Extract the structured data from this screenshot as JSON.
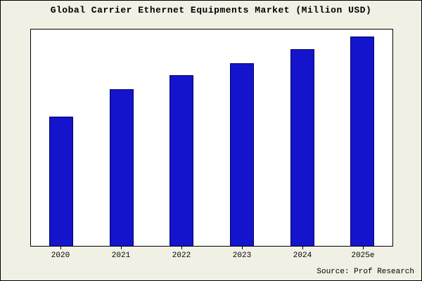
{
  "title": "Global Carrier Ethernet Equipments Market (Million USD)",
  "source": "Source: Prof Research",
  "colors": {
    "background": "#f1f0e5",
    "plot_background": "#ffffff",
    "bar_fill": "#1414cc",
    "bar_edge": "#000066",
    "border": "#000000"
  },
  "chart_data": {
    "type": "bar",
    "title": "Global Carrier Ethernet Equipments Market (Million USD)",
    "categories": [
      "2020",
      "2021",
      "2022",
      "2023",
      "2024",
      "2025e"
    ],
    "values": [
      620,
      750,
      815,
      875,
      940,
      1000
    ],
    "xlabel": "",
    "ylabel": "",
    "ylim": [
      0,
      1035
    ],
    "grid": false,
    "legend": false,
    "annotation": "Source: Prof Research"
  }
}
